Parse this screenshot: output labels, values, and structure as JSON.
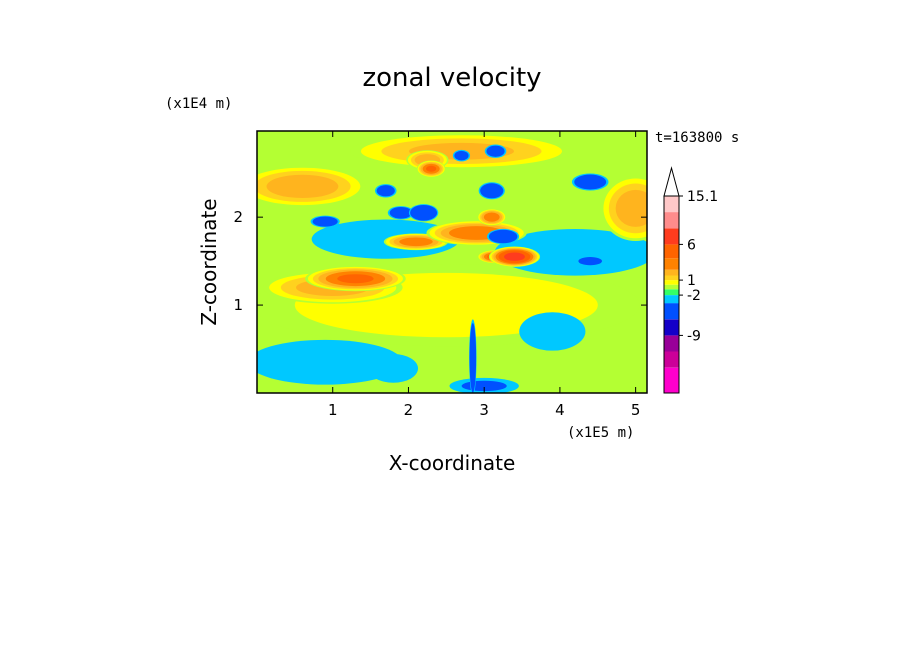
{
  "chart_data": {
    "type": "heatmap",
    "title": "zonal velocity",
    "xlabel": "X-coordinate",
    "ylabel": "Z-coordinate",
    "x_multiplier_label": "(x1E5 m)",
    "y_multiplier_label": "(x1E4 m)",
    "time_label": "t=163800 s",
    "xlim": [
      0,
      5.15
    ],
    "ylim": [
      0,
      2.98
    ],
    "x_ticks": [
      {
        "value": 1,
        "label": "1"
      },
      {
        "value": 2,
        "label": "2"
      },
      {
        "value": 3,
        "label": "3"
      },
      {
        "value": 4,
        "label": "4"
      },
      {
        "value": 5,
        "label": "5"
      }
    ],
    "y_ticks": [
      {
        "value": 1,
        "label": "1"
      },
      {
        "value": 2,
        "label": "2"
      }
    ],
    "colorbar": {
      "colors": [
        "#ff00cc",
        "#cc0099",
        "#990099",
        "#1400c8",
        "#0050ff",
        "#00c8ff",
        "#33ff66",
        "#b4ff33",
        "#ffff00",
        "#ffd21e",
        "#ffb41e",
        "#ff8200",
        "#ff6400",
        "#ff3c1e",
        "#ff8c8c",
        "#ffc8c8"
      ],
      "tick_labels": [
        {
          "value": 15.1,
          "label": "15.1"
        },
        {
          "value": 6,
          "label": "6"
        },
        {
          "value": 1,
          "label": "1"
        },
        {
          "value": -2,
          "label": "-2"
        },
        {
          "value": -9,
          "label": "-9"
        }
      ],
      "extend": "max"
    },
    "field_features": [
      {
        "x": 2.5,
        "z": 1.0,
        "rx": 3.0,
        "rz": 0.55,
        "value": 1.2
      },
      {
        "x": 1.0,
        "z": 1.2,
        "rx": 1.0,
        "rz": 0.2,
        "value": 2.8
      },
      {
        "x": 1.3,
        "z": 1.3,
        "rx": 0.7,
        "rz": 0.15,
        "value": 4.5
      },
      {
        "x": 0.6,
        "z": 2.35,
        "rx": 0.9,
        "rz": 0.25,
        "value": 3.0
      },
      {
        "x": 2.7,
        "z": 2.75,
        "rx": 1.6,
        "rz": 0.22,
        "value": 2.6
      },
      {
        "x": 5.0,
        "z": 2.1,
        "rx": 0.5,
        "rz": 0.4,
        "value": 3.0
      },
      {
        "x": 2.9,
        "z": 1.82,
        "rx": 0.7,
        "rz": 0.15,
        "value": 4.2
      },
      {
        "x": 3.4,
        "z": 1.55,
        "rx": 0.35,
        "rz": 0.12,
        "value": 6.5
      },
      {
        "x": 1.7,
        "z": 1.75,
        "rx": 1.1,
        "rz": 0.25,
        "value": -1.8
      },
      {
        "x": 4.2,
        "z": 1.6,
        "rx": 1.2,
        "rz": 0.3,
        "value": -1.7
      },
      {
        "x": 0.9,
        "z": 0.35,
        "rx": 1.2,
        "rz": 0.3,
        "value": -1.2
      },
      {
        "x": 3.9,
        "z": 0.7,
        "rx": 0.5,
        "rz": 0.25,
        "value": -1.5
      },
      {
        "x": 1.8,
        "z": 0.28,
        "rx": 0.4,
        "rz": 0.2,
        "value": -0.9
      },
      {
        "x": 1.9,
        "z": 2.05,
        "rx": 0.18,
        "rz": 0.08,
        "value": -5.5
      },
      {
        "x": 0.9,
        "z": 1.95,
        "rx": 0.2,
        "rz": 0.07,
        "value": -6.0
      },
      {
        "x": 2.2,
        "z": 2.05,
        "rx": 0.2,
        "rz": 0.1,
        "value": -9.0
      },
      {
        "x": 3.25,
        "z": 1.78,
        "rx": 0.22,
        "rz": 0.09,
        "value": -7.0
      },
      {
        "x": 3.1,
        "z": 2.3,
        "rx": 0.18,
        "rz": 0.1,
        "value": -6.5
      },
      {
        "x": 3.15,
        "z": 2.75,
        "rx": 0.15,
        "rz": 0.08,
        "value": -5.0
      },
      {
        "x": 2.7,
        "z": 2.7,
        "rx": 0.12,
        "rz": 0.07,
        "value": -4.5
      },
      {
        "x": 4.4,
        "z": 2.4,
        "rx": 0.25,
        "rz": 0.1,
        "value": -6.5
      },
      {
        "x": 4.4,
        "z": 1.5,
        "rx": 0.2,
        "rz": 0.06,
        "value": -4.5
      },
      {
        "x": 1.7,
        "z": 2.3,
        "rx": 0.15,
        "rz": 0.08,
        "value": -5.0
      },
      {
        "x": 2.1,
        "z": 1.72,
        "rx": 0.45,
        "rz": 0.1,
        "value": 4.0
      },
      {
        "x": 2.3,
        "z": 2.55,
        "rx": 0.2,
        "rz": 0.1,
        "value": 4.5
      },
      {
        "x": 2.25,
        "z": 2.65,
        "rx": 0.3,
        "rz": 0.12,
        "value": 3.2
      },
      {
        "x": 3.1,
        "z": 2.0,
        "rx": 0.2,
        "rz": 0.1,
        "value": 4.2
      },
      {
        "x": 3.15,
        "z": 1.55,
        "rx": 0.25,
        "rz": 0.08,
        "value": 5.0
      },
      {
        "x": 2.85,
        "z": 0.4,
        "rx": 0.05,
        "rz": 0.45,
        "value": -8.0
      },
      {
        "x": 3.0,
        "z": 0.08,
        "rx": 0.5,
        "rz": 0.1,
        "value": -2.5
      }
    ]
  }
}
